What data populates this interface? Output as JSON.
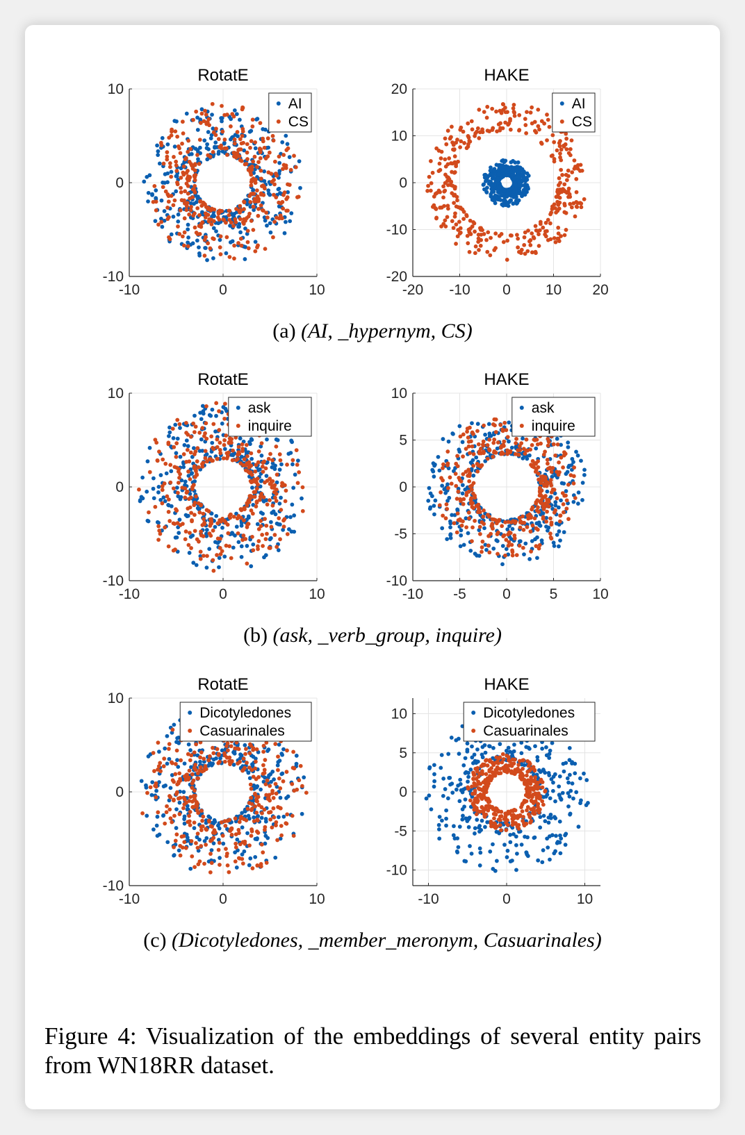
{
  "colors": {
    "series1": "#0b5fb0",
    "series2": "#d24a1c"
  },
  "captions": [
    {
      "label": "(a)",
      "text": "(AI, _hypernym, CS)"
    },
    {
      "label": "(b)",
      "text": "(ask, _verb_group, inquire)"
    },
    {
      "label": "(c)",
      "text": "(Dicotyledones, _member_meronym, Casuarinales)"
    }
  ],
  "figure_caption": "Figure 4: Visualization of the embeddings of several entity pairs from WN18RR dataset.",
  "chart_data": [
    {
      "type": "scatter",
      "title": "RotatE",
      "xlim": [
        -10,
        10
      ],
      "ylim": [
        -10,
        10
      ],
      "xticks": [
        -10,
        0,
        10
      ],
      "yticks": [
        -10,
        0,
        10
      ],
      "grid": true,
      "legend": "top-right",
      "series": [
        {
          "name": "AI",
          "rings": [
            {
              "r_min": 3.0,
              "r_max": 8.5
            }
          ]
        },
        {
          "name": "CS",
          "rings": [
            {
              "r_min": 3.0,
              "r_max": 8.5
            }
          ]
        }
      ]
    },
    {
      "type": "scatter",
      "title": "HAKE",
      "xlim": [
        -20,
        20
      ],
      "ylim": [
        -20,
        20
      ],
      "xticks": [
        -20,
        -10,
        0,
        10,
        20
      ],
      "yticks": [
        -20,
        -10,
        0,
        10,
        20
      ],
      "grid": true,
      "legend": "top-right",
      "series": [
        {
          "name": "AI",
          "rings": [
            {
              "r_min": 1.5,
              "r_max": 5.0
            }
          ]
        },
        {
          "name": "CS",
          "rings": [
            {
              "r_min": 11.0,
              "r_max": 17.0
            }
          ]
        }
      ]
    },
    {
      "type": "scatter",
      "title": "RotatE",
      "xlim": [
        -10,
        10
      ],
      "ylim": [
        -10,
        10
      ],
      "xticks": [
        -10,
        0,
        10
      ],
      "yticks": [
        -10,
        0,
        10
      ],
      "grid": true,
      "legend": "top-right",
      "series": [
        {
          "name": "ask",
          "rings": [
            {
              "r_min": 3.0,
              "r_max": 9.0
            }
          ]
        },
        {
          "name": "inquire",
          "rings": [
            {
              "r_min": 3.0,
              "r_max": 9.0
            }
          ]
        }
      ]
    },
    {
      "type": "scatter",
      "title": "HAKE",
      "xlim": [
        -10,
        10
      ],
      "ylim": [
        -10,
        10
      ],
      "xticks": [
        -10,
        -5,
        0,
        5,
        10
      ],
      "yticks": [
        -10,
        -5,
        0,
        5,
        10
      ],
      "grid": true,
      "legend": "top-right",
      "series": [
        {
          "name": "ask",
          "rings": [
            {
              "r_min": 3.5,
              "r_max": 8.5
            }
          ]
        },
        {
          "name": "inquire",
          "rings": [
            {
              "r_min": 3.5,
              "r_max": 7.5
            }
          ]
        }
      ]
    },
    {
      "type": "scatter",
      "title": "RotatE",
      "xlim": [
        -10,
        10
      ],
      "ylim": [
        -10,
        10
      ],
      "xticks": [
        -10,
        0,
        10
      ],
      "yticks": [
        -10,
        0,
        10
      ],
      "grid": true,
      "legend": "top-right",
      "series": [
        {
          "name": "Dicotyledones",
          "rings": [
            {
              "r_min": 3.0,
              "r_max": 9.0
            }
          ]
        },
        {
          "name": "Casuarinales",
          "rings": [
            {
              "r_min": 3.0,
              "r_max": 9.0
            }
          ]
        }
      ]
    },
    {
      "type": "scatter",
      "title": "HAKE",
      "xlim": [
        -12,
        12
      ],
      "ylim": [
        -12,
        12
      ],
      "xticks": [
        -10,
        0,
        10
      ],
      "yticks": [
        -10,
        -5,
        0,
        5,
        10
      ],
      "grid": true,
      "legend": "top-right",
      "series": [
        {
          "name": "Dicotyledones",
          "rings": [
            {
              "r_min": 4.0,
              "r_max": 10.5
            }
          ]
        },
        {
          "name": "Casuarinales",
          "rings": [
            {
              "r_min": 2.5,
              "r_max": 5.0
            }
          ]
        }
      ]
    }
  ]
}
